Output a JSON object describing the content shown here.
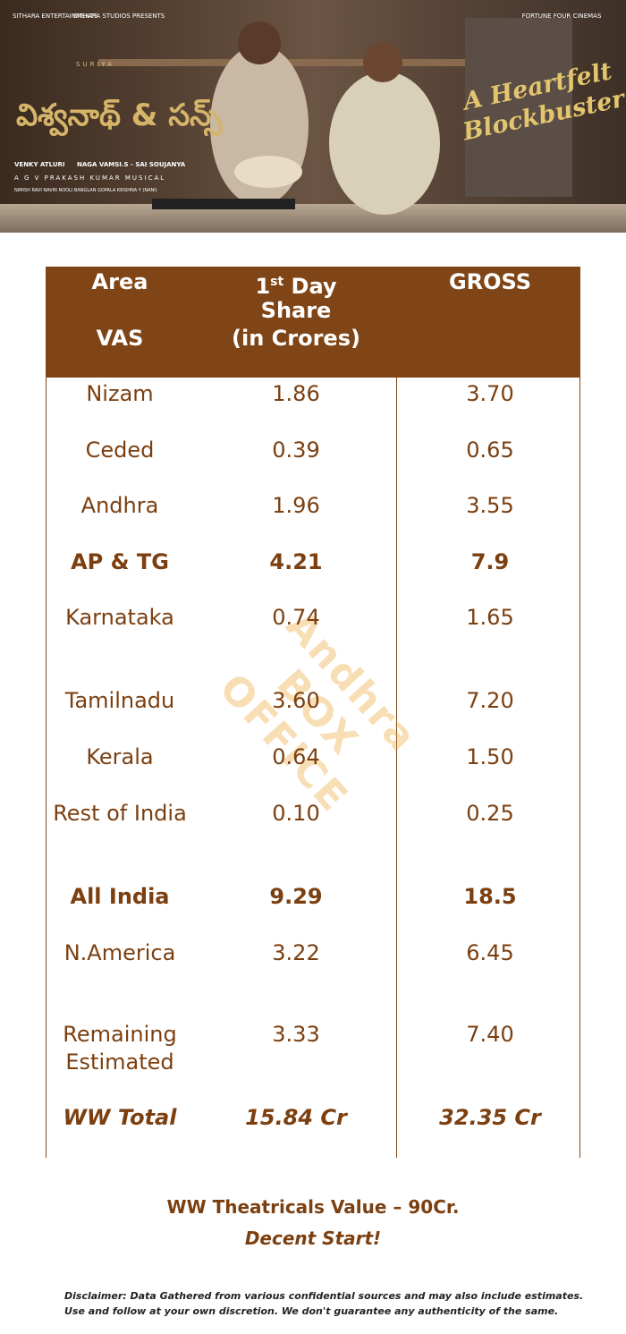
{
  "banner": {
    "logos": [
      "SITHARA ENTERTAINMENTS",
      "SITHARA STUDIOS PRESENTS",
      "FORTUNE FOUR CINEMAS"
    ],
    "star": "SURIYA",
    "title": "విశ్వనాథ్ & సన్స్",
    "credits": [
      "VENKY ATLURI",
      "NAGA VAMSI.S - SAI SOUJANYA",
      "A G V PRAKASH KUMAR MUSICAL",
      "NIMISH RAVI   NAVIN NOOLI   BANGLAN   GOPALA KRISHNA Y (NANI)"
    ],
    "tagline": [
      "A Heartfelt",
      "Blockbuster"
    ]
  },
  "table": {
    "header": {
      "area": [
        "Area",
        "VAS"
      ],
      "share": [
        "1",
        "st",
        " Day",
        "Share",
        "(in Crores)"
      ],
      "gross": "GROSS"
    },
    "rows": [
      [
        "Nizam",
        "1.86",
        "3.70"
      ],
      [
        "Ceded",
        "0.39",
        "0.65"
      ],
      [
        "Andhra",
        "1.96",
        "3.55"
      ],
      [
        "AP & TG",
        "4.21",
        "7.9"
      ],
      [
        "Karnataka",
        "0.74",
        "1.65"
      ],
      [
        "Tamilnadu",
        "3.60",
        "7.20"
      ],
      [
        "Kerala",
        "0.64",
        "1.50"
      ],
      [
        "Rest of India",
        "0.10",
        "0.25"
      ],
      [
        "All India",
        "9.29",
        "18.5"
      ],
      [
        "N.America",
        "3.22",
        "6.45"
      ],
      [
        "Remaining Estimated",
        "3.33",
        "7.40"
      ],
      [
        "WW Total",
        "15.84 Cr",
        "32.35 Cr"
      ]
    ]
  },
  "watermark": "Andhra BOX OFFICE",
  "footer": {
    "value": "WW Theatricals Value – 90Cr.",
    "verdict": "Decent Start!",
    "disclaimer": "Disclaimer:  Data Gathered from various confidential sources and may also include estimates. Use and follow at your own discretion.  We don't guarantee any authenticity of the same."
  }
}
